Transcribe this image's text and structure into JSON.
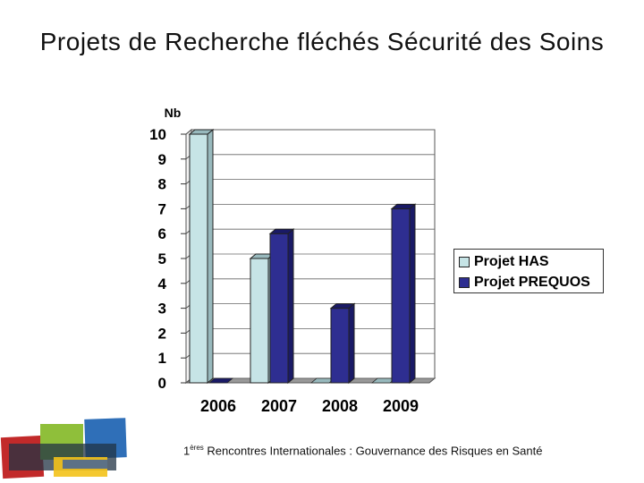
{
  "title": "Projets de Recherche fléchés Sécurité des Soins",
  "footer": {
    "superscript_prefix": "1",
    "superscript": "ères",
    "text": "Rencontres Internationales : Gouvernance des Risques en Santé"
  },
  "colors": {
    "has": "#c6e4e6",
    "prequos": "#2e2e91",
    "has_side": "#98b9bd",
    "prequos_side": "#1a1a66"
  },
  "chart_data": {
    "type": "bar",
    "title": "",
    "ylabel": "Nb",
    "xlabel": "",
    "categories": [
      "2006",
      "2007",
      "2008",
      "2009"
    ],
    "series": [
      {
        "name": "Projet HAS",
        "values": [
          10,
          5,
          0,
          0
        ]
      },
      {
        "name": "Projet PREQUOS",
        "values": [
          0,
          6,
          3,
          7
        ]
      }
    ],
    "ylim": [
      0,
      10
    ],
    "yticks": [
      "0",
      "1",
      "2",
      "3",
      "4",
      "5",
      "6",
      "7",
      "8",
      "9",
      "10"
    ],
    "grid": true,
    "legend_position": "right"
  }
}
